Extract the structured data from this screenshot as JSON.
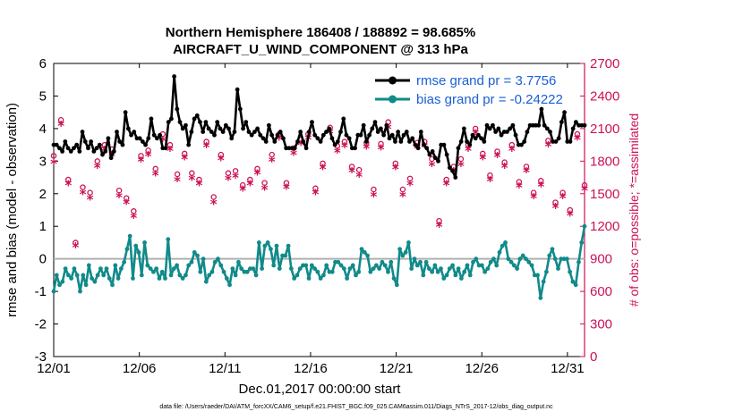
{
  "chart_data": {
    "type": "line",
    "title_line1": "Northern Hemisphere 186408 / 188892 = 98.685%",
    "title_line2": "AIRCRAFT_U_WIND_COMPONENT @ 313 hPa",
    "xlabel": "Dec.01,2017 00:00:00 start",
    "ylabel": "rmse and bias (model - observation)",
    "y2label": "# of obs: o=possible; *=assimilated",
    "xlim": [
      0,
      31
    ],
    "ylim": [
      -3,
      6
    ],
    "y2lim": [
      0,
      2700
    ],
    "x_ticks": [
      0,
      5,
      10,
      15,
      20,
      25,
      30
    ],
    "x_tick_labels": [
      "12/01",
      "12/06",
      "12/11",
      "12/16",
      "12/21",
      "12/26",
      "12/31"
    ],
    "y_ticks": [
      "6",
      "5",
      "4",
      "3",
      "2",
      "1",
      "0",
      "-1",
      "-2",
      "-3"
    ],
    "y2_ticks": [
      "2700",
      "2400",
      "2100",
      "1800",
      "1500",
      "1200",
      "900",
      "600",
      "300",
      "0"
    ],
    "zero_line": 0,
    "colors": {
      "rmse": "#000000",
      "bias": "#118a8a",
      "obs": "#cc1157",
      "zero": "#b0b0b0"
    },
    "series": [
      {
        "name": "rmse grand pr = 3.7756",
        "axis": "left",
        "values": [
          3.5,
          3.5,
          3.4,
          3.3,
          3.6,
          3.4,
          3.3,
          3.4,
          3.5,
          3.3,
          3.9,
          3.6,
          3.4,
          3.6,
          3.3,
          3.4,
          3.5,
          3.2,
          3.3,
          3.7,
          3.1,
          3.3,
          3.9,
          3.6,
          3.5,
          4.5,
          4.0,
          3.8,
          3.9,
          3.7,
          3.7,
          3.6,
          3.5,
          3.7,
          4.3,
          3.8,
          3.7,
          3.8,
          3.4,
          3.4,
          4.2,
          4.3,
          5.6,
          4.6,
          4.2,
          4.0,
          4.1,
          3.5,
          3.9,
          4.3,
          4.4,
          4.2,
          3.9,
          4.2,
          4.0,
          3.9,
          3.8,
          4.2,
          4.0,
          3.9,
          4.1,
          4.0,
          3.7,
          3.9,
          5.2,
          4.6,
          4.0,
          4.2,
          3.9,
          3.8,
          3.9,
          4.0,
          3.8,
          3.7,
          3.6,
          4.1,
          3.8,
          3.6,
          3.8,
          3.9,
          3.7,
          3.4,
          3.4,
          3.4,
          3.4,
          3.6,
          3.9,
          3.6,
          3.4,
          3.9,
          4.2,
          3.8,
          3.7,
          3.6,
          3.8,
          3.9,
          4.0,
          3.7,
          3.5,
          3.6,
          3.9,
          4.3,
          3.8,
          3.7,
          3.4,
          3.4,
          3.8,
          3.8,
          4.1,
          3.6,
          3.8,
          4.0,
          4.2,
          3.9,
          4.0,
          3.8,
          4.1,
          3.7,
          3.8,
          3.6,
          3.9,
          3.6,
          3.8,
          3.9,
          3.6,
          3.7,
          3.5,
          3.4,
          3.9,
          3.5,
          3.4,
          3.2,
          3.3,
          3.1,
          3.0,
          3.5,
          3.5,
          3.2,
          2.8,
          2.7,
          2.5,
          3.4,
          3.6,
          4.0,
          3.6,
          3.5,
          3.8,
          3.7,
          3.8,
          3.7,
          3.6,
          4.1,
          4.0,
          4.1,
          3.9,
          4.0,
          3.8,
          3.9,
          3.9,
          4.0,
          4.1,
          3.8,
          3.5,
          3.5,
          3.6,
          3.9,
          4.1,
          4.1,
          4.1,
          4.1,
          4.6,
          4.1,
          4.0,
          3.9,
          3.6,
          3.6,
          3.7,
          4.2,
          4.5,
          3.6,
          3.6,
          4.0,
          4.2,
          4.1,
          4.1,
          4.1
        ]
      },
      {
        "name": "bias grand pr = -0.24222",
        "axis": "left",
        "values": [
          -1.0,
          -0.5,
          -0.8,
          -0.7,
          -0.3,
          -0.5,
          -0.6,
          -0.3,
          -0.5,
          -1.0,
          -0.5,
          -0.8,
          -0.2,
          -0.6,
          -0.7,
          -0.5,
          -0.3,
          -0.5,
          -0.3,
          -0.6,
          -0.8,
          -0.2,
          -0.6,
          -0.3,
          -0.1,
          0.3,
          0.7,
          -0.6,
          0.4,
          0.2,
          -0.5,
          0.5,
          -0.2,
          -0.3,
          -0.4,
          -0.3,
          -0.6,
          -0.4,
          -0.6,
          0.6,
          -0.5,
          -0.3,
          -0.2,
          -0.5,
          -0.6,
          -0.5,
          -0.2,
          -0.1,
          0.2,
          0.1,
          -0.4,
          0.0,
          -0.7,
          -0.5,
          -0.4,
          -0.1,
          0.0,
          -0.2,
          -0.4,
          -0.6,
          -0.8,
          -0.3,
          -0.5,
          -0.1,
          -0.3,
          -0.4,
          -0.4,
          -0.3,
          -0.3,
          -0.5,
          0.5,
          -0.3,
          0.4,
          0.5,
          0.3,
          -0.2,
          0.4,
          -0.3,
          0.1,
          0.1,
          0.4,
          -0.3,
          -0.6,
          -0.5,
          -0.3,
          -0.2,
          -0.2,
          -0.6,
          -0.2,
          -0.3,
          -0.4,
          -0.6,
          -0.5,
          -0.2,
          -0.4,
          -0.4,
          -0.1,
          -0.1,
          -0.2,
          -0.3,
          -0.6,
          -0.3,
          -0.2,
          -0.5,
          -0.4,
          0.3,
          0.2,
          0.1,
          -0.4,
          -0.3,
          -0.2,
          -0.3,
          -0.1,
          -0.2,
          -0.4,
          -0.1,
          -0.6,
          -0.8,
          0.3,
          0.1,
          0.2,
          0.5,
          -0.3,
          0.0,
          -0.2,
          -0.1,
          -0.5,
          -0.1,
          -0.3,
          -0.4,
          -0.2,
          -0.4,
          -0.3,
          -0.6,
          -0.5,
          -0.3,
          -0.2,
          -0.5,
          -0.3,
          -0.6,
          -0.4,
          -0.2,
          -0.5,
          -0.1,
          0.0,
          -0.2,
          -0.2,
          -0.4,
          -0.3,
          -0.1,
          0.0,
          -0.2,
          0.2,
          0.4,
          0.5,
          0.0,
          -0.1,
          -0.2,
          -0.3,
          0.0,
          0.1,
          0.0,
          -0.1,
          -0.2,
          -0.5,
          -0.5,
          -1.2,
          -0.7,
          -0.4,
          0.1,
          0.3,
          0.0,
          -0.3,
          0.0,
          0.0,
          0.0,
          -0.4,
          -0.7,
          -0.8,
          -0.1,
          0.5,
          1.0
        ]
      },
      {
        "name": "obs possible",
        "axis": "right",
        "values": [
          1800,
          2130,
          1580,
          1000,
          1510,
          1460,
          1750,
          1900,
          1860,
          1480,
          1410,
          1290,
          1800,
          1850,
          1680,
          2000,
          1900,
          1630,
          1820,
          1640,
          1580,
          1930,
          1420,
          1810,
          1640,
          1660,
          1530,
          1580,
          1680,
          1550,
          1810,
          2000,
          1550,
          1870,
          1950,
          2000,
          1500,
          1730,
          2060,
          1890,
          1930,
          1700,
          1670,
          1920,
          1490,
          1910,
          2110,
          1730,
          1490,
          1590,
          1920,
          1930,
          1770,
          1200,
          1580,
          1700,
          1770,
          1900,
          2050,
          1820,
          1620,
          1840,
          1740,
          1900,
          1560,
          1700,
          1460,
          1570,
          1940,
          1370,
          1460,
          1300,
          2000,
          1530
        ]
      },
      {
        "name": "obs assimilated",
        "axis": "right",
        "values": [
          1800,
          2150,
          1600,
          1030,
          1520,
          1470,
          1760,
          1920,
          1870,
          1490,
          1430,
          1300,
          1820,
          1870,
          1690,
          2010,
          1920,
          1640,
          1840,
          1650,
          1600,
          1950,
          1430,
          1830,
          1650,
          1670,
          1550,
          1600,
          1700,
          1560,
          1820,
          2020,
          1570,
          1880,
          1970,
          2020,
          1520,
          1750,
          2080,
          1900,
          1950,
          1720,
          1680,
          1940,
          1500,
          1930,
          2120,
          1750,
          1500,
          1600,
          1940,
          1950,
          1780,
          1220,
          1600,
          1720,
          1780,
          1920,
          2070,
          1840,
          1640,
          1860,
          1760,
          1920,
          1580,
          1720,
          1480,
          1590,
          1960,
          1390,
          1480,
          1320,
          2020,
          1550
        ]
      }
    ]
  },
  "footer_text": "data file: /Users/raeder/DAI/ATM_forcXX/CAM6_setup/f.e21.FHIST_BGC.f09_025.CAM6assim.011/Diags_NTrS_2017-12/obs_diag_output.nc"
}
